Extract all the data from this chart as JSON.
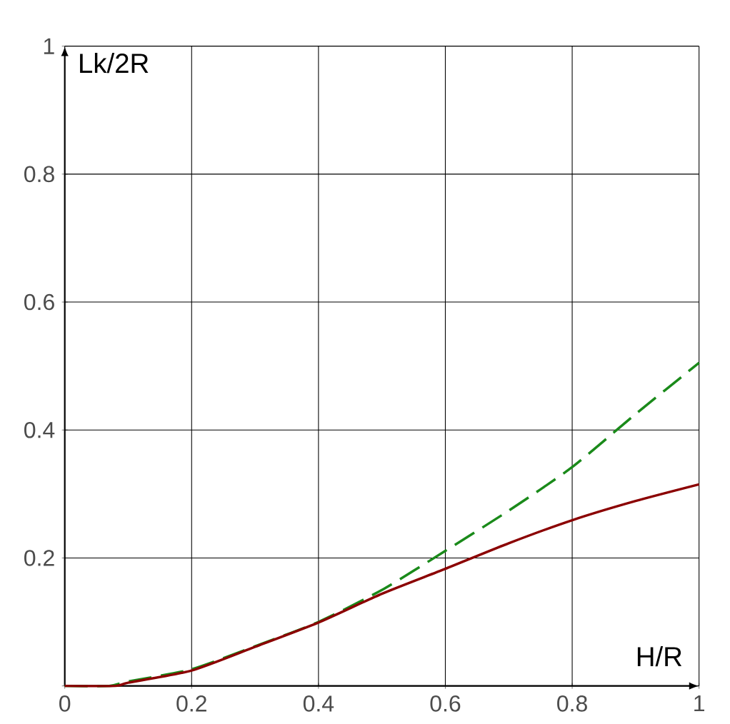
{
  "chart_data": {
    "type": "line",
    "xlabel": "H/R",
    "ylabel": "Lk/2R",
    "xlim": [
      0,
      1
    ],
    "ylim": [
      0,
      1
    ],
    "xticks": [
      0,
      0.2,
      0.4,
      0.6,
      0.8,
      1
    ],
    "yticks": [
      {
        "value": 0,
        "label": null
      },
      0.2,
      0.4,
      0.6,
      0.8,
      1
    ],
    "grid": true,
    "series": [
      {
        "color": "#1a8a1a",
        "line_style": "dashed",
        "x": [
          0,
          0.07,
          0.1,
          0.2,
          0.3,
          0.4,
          0.5,
          0.6,
          0.7,
          0.8,
          0.9,
          1
        ],
        "values": [
          0,
          0,
          0.007,
          0.026,
          0.062,
          0.1,
          0.15,
          0.211,
          0.274,
          0.342,
          0.425,
          0.505
        ]
      },
      {
        "color": "#8b0000",
        "line_style": "solid",
        "x": [
          0,
          0.08,
          0.1,
          0.2,
          0.3,
          0.4,
          0.5,
          0.6,
          0.7,
          0.8,
          0.9,
          1
        ],
        "values": [
          0,
          0,
          0.005,
          0.024,
          0.061,
          0.099,
          0.144,
          0.183,
          0.223,
          0.259,
          0.289,
          0.315
        ]
      }
    ]
  }
}
